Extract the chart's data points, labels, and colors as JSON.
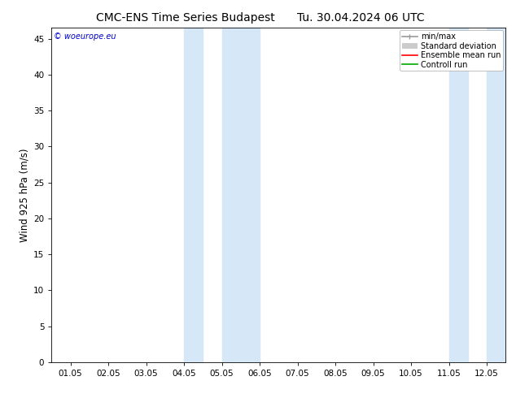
{
  "title": "CMC-ENS Time Series Budapest",
  "title2": "Tu. 30.04.2024 06 UTC",
  "ylabel": "Wind 925 hPa (m/s)",
  "ylim": [
    0,
    46.5
  ],
  "yticks": [
    0,
    5,
    10,
    15,
    20,
    25,
    30,
    35,
    40,
    45
  ],
  "xtick_labels": [
    "01.05",
    "02.05",
    "03.05",
    "04.05",
    "05.05",
    "06.05",
    "07.05",
    "08.05",
    "09.05",
    "10.05",
    "11.05",
    "12.05"
  ],
  "xtick_positions": [
    0,
    1,
    2,
    3,
    4,
    5,
    6,
    7,
    8,
    9,
    10,
    11
  ],
  "shade_regions": [
    [
      3.0,
      3.5
    ],
    [
      4.0,
      5.0
    ],
    [
      10.0,
      10.5
    ],
    [
      11.0,
      11.5
    ]
  ],
  "shade_color": "#d6e8f7",
  "background_color": "#ffffff",
  "copyright": "© woeurope.eu",
  "legend_items": [
    {
      "label": "min/max",
      "color": "#999999",
      "lw": 1.2,
      "style": "minmax"
    },
    {
      "label": "Standard deviation",
      "color": "#cccccc",
      "lw": 8,
      "style": "bar"
    },
    {
      "label": "Ensemble mean run",
      "color": "#ff0000",
      "lw": 1.2,
      "style": "line"
    },
    {
      "label": "Controll run",
      "color": "#00aa00",
      "lw": 1.2,
      "style": "line"
    }
  ],
  "title_fontsize": 10,
  "axis_fontsize": 8.5,
  "tick_fontsize": 7.5
}
